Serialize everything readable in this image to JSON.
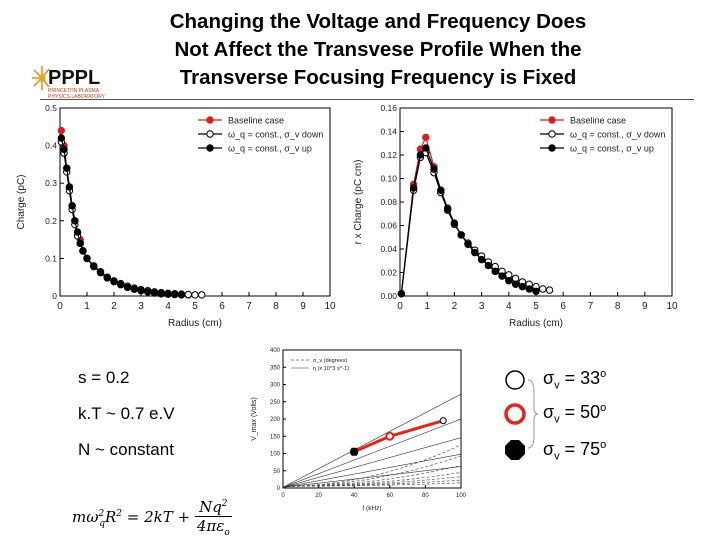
{
  "slide": {
    "title_lines": [
      "Changing the Voltage and Frequency Does",
      "Not Affect the Transvese Profile When the",
      "Transverse Focusing Frequency is Fixed"
    ],
    "logo_text": "PPPL",
    "logo_subtext": [
      "PRINCETON PLASMA",
      "PHYSICS LABORATORY"
    ]
  },
  "params": {
    "s": "s = 0.2",
    "kt": "k.T ~ 0.7 e.V",
    "n": "N ~ constant"
  },
  "formula": {
    "lhs": "mω",
    "lhs_sub": "q",
    "lhs_sup": "2",
    "r": "R",
    "r_sup": "2",
    "eq": " = 2kT + ",
    "numerator": "Nq",
    "num_sup": "2",
    "denominator": "4πε",
    "den_sub": "o"
  },
  "sigma_legend": [
    {
      "symbol": "σ",
      "sub": "v",
      "text": " = 33",
      "sup": "o",
      "marker": "open-circle"
    },
    {
      "symbol": "σ",
      "sub": "v",
      "text": " = 50",
      "sup": "o",
      "marker": "red-circle"
    },
    {
      "symbol": "σ",
      "sub": "v",
      "text": " = 75",
      "sup": "o",
      "marker": "filled-octagon"
    }
  ],
  "colors": {
    "baseline": "#d62020",
    "highlight": "#e0251a",
    "black": "#000000"
  },
  "chart_data": [
    {
      "type": "line",
      "xlabel": "Radius (cm)",
      "ylabel": "Charge (pC)",
      "xlim": [
        0,
        10
      ],
      "ylim": [
        0,
        0.5
      ],
      "xticks": [
        "0",
        "1",
        "2",
        "3",
        "4",
        "5",
        "6",
        "7",
        "8",
        "9",
        "10"
      ],
      "yticks": [
        "0",
        "0.1",
        "0.2",
        "0.3",
        "0.4",
        "0.5"
      ],
      "legend_position": "top-right",
      "series": [
        {
          "name": "Baseline case",
          "marker": "red",
          "x": [
            0.05,
            0.15,
            0.25,
            0.35,
            0.45,
            0.55,
            0.65,
            0.75,
            0.85,
            1.0,
            1.25,
            1.5,
            1.75,
            2.0,
            2.25,
            2.5,
            2.75,
            3.0,
            3.25,
            3.5,
            3.75,
            4.0,
            4.25,
            4.5,
            4.75
          ],
          "values": [
            0.44,
            0.4,
            0.34,
            0.29,
            0.24,
            0.2,
            0.17,
            0.15,
            0.12,
            0.1,
            0.08,
            0.065,
            0.05,
            0.04,
            0.032,
            0.025,
            0.02,
            0.015,
            0.012,
            0.009,
            0.007,
            0.006,
            0.005,
            0.004,
            0.003
          ]
        },
        {
          "name": "ω_q = const., σ_v down",
          "marker": "open",
          "x": [
            0.05,
            0.15,
            0.25,
            0.35,
            0.45,
            0.55,
            0.65,
            0.75,
            0.85,
            1.0,
            1.25,
            1.5,
            1.75,
            2.0,
            2.25,
            2.5,
            2.75,
            3.0,
            3.25,
            3.5,
            3.75,
            4.0,
            4.25,
            4.5,
            4.75,
            5.0,
            5.25
          ],
          "values": [
            0.41,
            0.38,
            0.33,
            0.28,
            0.23,
            0.19,
            0.16,
            0.14,
            0.12,
            0.1,
            0.08,
            0.064,
            0.05,
            0.04,
            0.033,
            0.026,
            0.021,
            0.017,
            0.014,
            0.011,
            0.009,
            0.007,
            0.006,
            0.005,
            0.004,
            0.003,
            0.003
          ]
        },
        {
          "name": "ω_q = const., σ_v up",
          "marker": "filled",
          "x": [
            0.05,
            0.15,
            0.25,
            0.35,
            0.45,
            0.55,
            0.65,
            0.75,
            0.85,
            1.0,
            1.25,
            1.5,
            1.75,
            2.0,
            2.25,
            2.5,
            2.75,
            3.0,
            3.25,
            3.5,
            3.75,
            4.0,
            4.25,
            4.5
          ],
          "values": [
            0.42,
            0.39,
            0.34,
            0.29,
            0.24,
            0.2,
            0.17,
            0.14,
            0.12,
            0.1,
            0.078,
            0.062,
            0.048,
            0.038,
            0.03,
            0.023,
            0.018,
            0.014,
            0.011,
            0.008,
            0.006,
            0.005,
            0.004,
            0.003
          ]
        }
      ]
    },
    {
      "type": "line",
      "xlabel": "Radius (cm)",
      "ylabel": "r x Charge (pC cm)",
      "xlim": [
        0,
        10
      ],
      "ylim": [
        0,
        0.16
      ],
      "xticks": [
        "0",
        "1",
        "2",
        "3",
        "4",
        "5",
        "6",
        "7",
        "8",
        "9",
        "10"
      ],
      "yticks": [
        "0.00",
        "0.02",
        "0.04",
        "0.06",
        "0.08",
        "0.10",
        "0.12",
        "0.14",
        "0.16"
      ],
      "legend_position": "top-right",
      "series": [
        {
          "name": "Baseline case",
          "marker": "red",
          "x": [
            0.05,
            0.5,
            0.75,
            0.95,
            1.25,
            1.5,
            1.75,
            2.0,
            2.25,
            2.5,
            2.75,
            3.0,
            3.25,
            3.5,
            3.75,
            4.0,
            4.25,
            4.5,
            4.75,
            5.0
          ],
          "values": [
            0.002,
            0.095,
            0.125,
            0.135,
            0.11,
            0.09,
            0.075,
            0.062,
            0.052,
            0.044,
            0.037,
            0.031,
            0.026,
            0.021,
            0.017,
            0.014,
            0.011,
            0.008,
            0.006,
            0.004
          ]
        },
        {
          "name": "ω_q = const., σ_v down",
          "marker": "open",
          "x": [
            0.05,
            0.5,
            0.75,
            0.95,
            1.25,
            1.5,
            1.75,
            2.0,
            2.25,
            2.5,
            2.75,
            3.0,
            3.25,
            3.5,
            3.75,
            4.0,
            4.25,
            4.5,
            4.75,
            5.0,
            5.25,
            5.5
          ],
          "values": [
            0.002,
            0.09,
            0.118,
            0.122,
            0.105,
            0.088,
            0.073,
            0.061,
            0.052,
            0.045,
            0.039,
            0.034,
            0.029,
            0.025,
            0.021,
            0.018,
            0.015,
            0.012,
            0.01,
            0.008,
            0.006,
            0.005
          ]
        },
        {
          "name": "ω_q = const., σ_v up",
          "marker": "filled",
          "x": [
            0.05,
            0.5,
            0.75,
            0.95,
            1.25,
            1.5,
            1.75,
            2.0,
            2.25,
            2.5,
            2.75,
            3.0,
            3.25,
            3.5,
            3.75,
            4.0,
            4.25,
            4.5,
            4.75,
            5.0
          ],
          "values": [
            0.002,
            0.092,
            0.12,
            0.126,
            0.108,
            0.09,
            0.074,
            0.062,
            0.052,
            0.044,
            0.037,
            0.031,
            0.026,
            0.021,
            0.017,
            0.013,
            0.01,
            0.008,
            0.006,
            0.004
          ]
        }
      ]
    },
    {
      "type": "line",
      "xlabel": "f (kHz)",
      "ylabel": "V_max (Volts)",
      "xlim": [
        0,
        100
      ],
      "ylim": [
        0,
        400
      ],
      "xticks": [
        "0",
        "20",
        "40",
        "60",
        "80",
        "100"
      ],
      "yticks": [
        "0",
        "50",
        "100",
        "150",
        "200",
        "250",
        "300",
        "350",
        "400"
      ],
      "legend": [
        "σ_v (degrees)",
        "η (x 10^3 s^-1)"
      ],
      "legend_position": "top-left",
      "highlight_path": {
        "x": [
          40,
          60,
          90
        ],
        "values": [
          105,
          150,
          195
        ]
      }
    }
  ]
}
